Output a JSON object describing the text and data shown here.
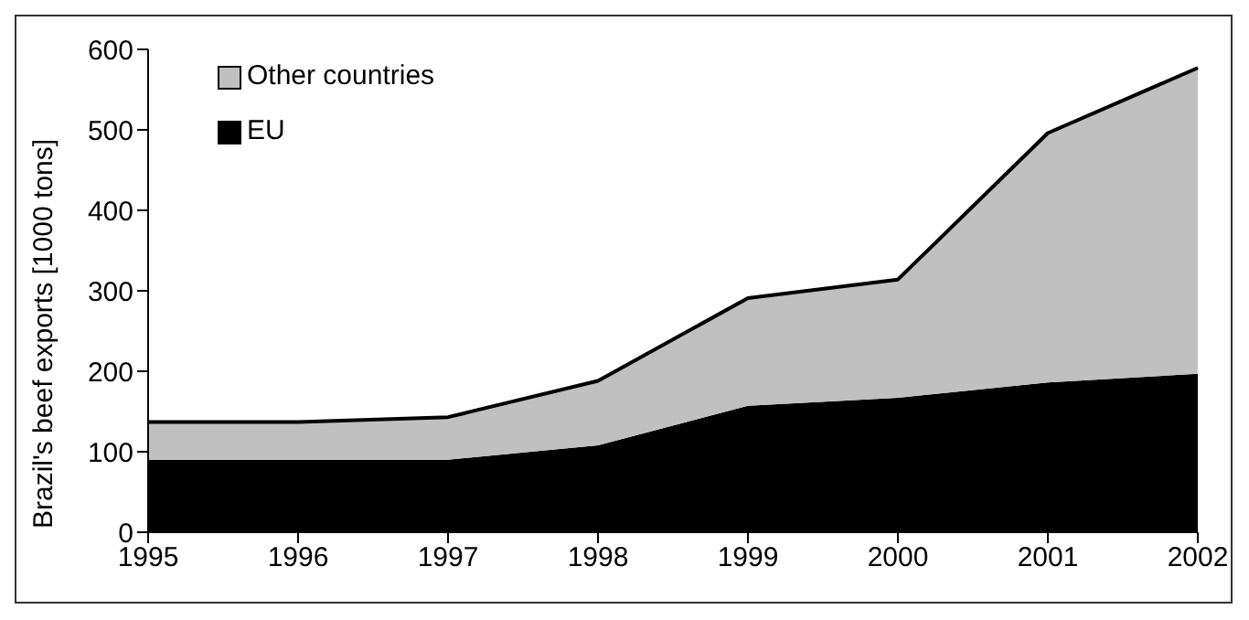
{
  "chart_data": {
    "type": "area",
    "stacked": true,
    "ylabel": "Brazil's beef exports [1000 tons]",
    "categories": [
      "1995",
      "1996",
      "1997",
      "1998",
      "1999",
      "2000",
      "2001",
      "2002"
    ],
    "series": [
      {
        "name": "EU",
        "color": "#000000",
        "values": [
          90,
          90,
          90,
          108,
          157,
          167,
          186,
          197
        ]
      },
      {
        "name": "Other countries",
        "color": "#c0c0c0",
        "values": [
          47,
          47,
          53,
          80,
          134,
          147,
          310,
          380
        ]
      }
    ],
    "ylim": [
      0,
      600
    ],
    "yticks": [
      0,
      100,
      200,
      300,
      400,
      500,
      600
    ],
    "grid": false,
    "legend": "top left"
  }
}
